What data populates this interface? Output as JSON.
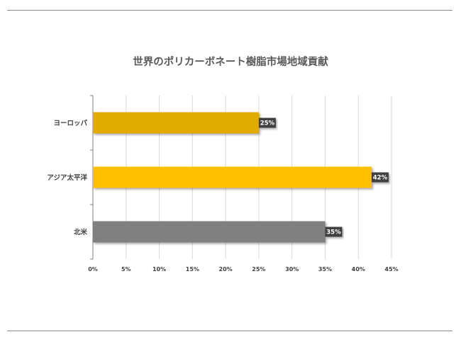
{
  "chart_data": {
    "type": "bar",
    "orientation": "horizontal",
    "title": "世界のポリカーボネート樹脂市場地域貢献",
    "categories": [
      "ヨーロッパ",
      "アジア太平洋",
      "北米"
    ],
    "values": [
      25,
      42,
      35
    ],
    "value_labels": [
      "25%",
      "42%",
      "35%"
    ],
    "bar_colors": [
      "#E3AA00",
      "#FFC000",
      "#808080"
    ],
    "xlim": [
      0,
      45
    ],
    "xticks": [
      0,
      5,
      10,
      15,
      20,
      25,
      30,
      35,
      40,
      45
    ],
    "xtick_labels": [
      "0%",
      "5%",
      "10%",
      "15%",
      "20%",
      "25%",
      "30%",
      "35%",
      "40%",
      "45%"
    ],
    "grid": "vertical",
    "legend": "none"
  }
}
